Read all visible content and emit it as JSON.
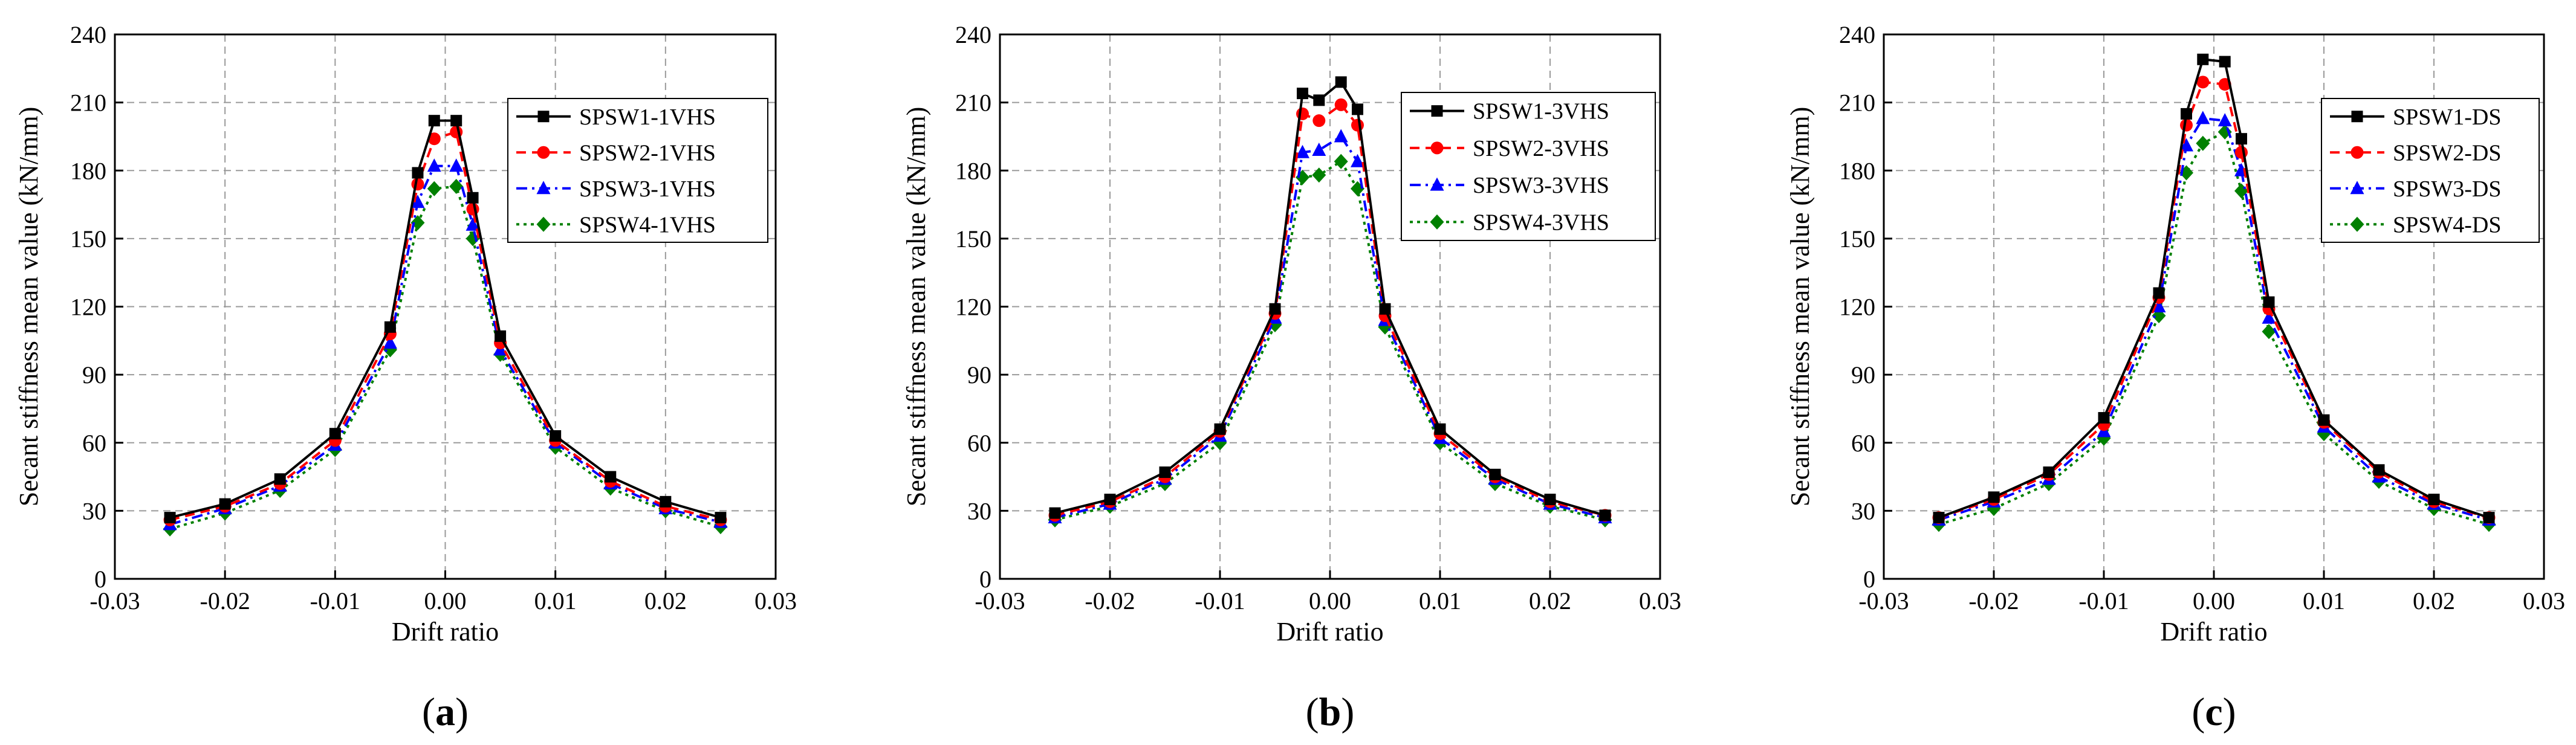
{
  "chart_data": [
    {
      "type": "line",
      "panel_label": [
        "(",
        "a",
        ")"
      ],
      "xlabel": "Drift ratio",
      "ylabel": "Secant stiffness mean value (kN/mm)",
      "xlim": [
        -0.03,
        0.03
      ],
      "ylim": [
        0,
        240
      ],
      "xticks": [
        -0.03,
        -0.02,
        -0.01,
        0.0,
        0.01,
        0.02,
        0.03
      ],
      "xtick_labels": [
        "-0.03",
        "-0.02",
        "-0.01",
        "0.00",
        "0.01",
        "0.02",
        "0.03"
      ],
      "yticks": [
        0,
        30,
        60,
        90,
        120,
        150,
        180,
        210,
        240
      ],
      "ytick_labels": [
        "0",
        "30",
        "60",
        "90",
        "120",
        "150",
        "180",
        "210",
        "240"
      ],
      "grid": true,
      "legend_position": "top-right",
      "x": [
        -0.025,
        -0.02,
        -0.015,
        -0.01,
        -0.005,
        -0.0025,
        -0.001,
        0.001,
        0.0025,
        0.005,
        0.01,
        0.015,
        0.02,
        0.025
      ],
      "series": [
        {
          "name": "SPSW1-1VHS",
          "color": "#000000",
          "marker": "square",
          "dash": "solid",
          "values": [
            27,
            33,
            44,
            64,
            111,
            179,
            202,
            202,
            168,
            107,
            63,
            45,
            34,
            27
          ]
        },
        {
          "name": "SPSW2-1VHS",
          "color": "#ff0000",
          "marker": "circle",
          "dash": "dash",
          "values": [
            26,
            32,
            42,
            61,
            108,
            174,
            194,
            197,
            163,
            104,
            61,
            43,
            32,
            26
          ]
        },
        {
          "name": "SPSW3-1VHS",
          "color": "#0000ff",
          "marker": "triangle",
          "dash": "dashdot",
          "values": [
            24,
            31,
            41,
            59,
            104,
            166,
            182,
            182,
            156,
            101,
            60,
            42,
            31,
            25
          ]
        },
        {
          "name": "SPSW4-1VHS",
          "color": "#008000",
          "marker": "diamond",
          "dash": "dot",
          "values": [
            22,
            29,
            39,
            57,
            101,
            157,
            172,
            173,
            150,
            99,
            58,
            40,
            30,
            23
          ]
        }
      ]
    },
    {
      "type": "line",
      "panel_label": [
        "(",
        "b",
        ")"
      ],
      "xlabel": "Drift ratio",
      "ylabel": "Secant stiffness mean value (kN/mm)",
      "xlim": [
        -0.03,
        0.03
      ],
      "ylim": [
        0,
        240
      ],
      "xticks": [
        -0.03,
        -0.02,
        -0.01,
        0.0,
        0.01,
        0.02,
        0.03
      ],
      "xtick_labels": [
        "-0.03",
        "-0.02",
        "-0.01",
        "0.00",
        "0.01",
        "0.02",
        "0.03"
      ],
      "yticks": [
        0,
        30,
        60,
        90,
        120,
        150,
        180,
        210,
        240
      ],
      "ytick_labels": [
        "0",
        "30",
        "60",
        "90",
        "120",
        "150",
        "180",
        "210",
        "240"
      ],
      "grid": true,
      "legend_position": "top-right",
      "x": [
        -0.025,
        -0.02,
        -0.015,
        -0.01,
        -0.005,
        -0.0025,
        -0.001,
        0.001,
        0.0025,
        0.005,
        0.01,
        0.015,
        0.02,
        0.025
      ],
      "series": [
        {
          "name": "SPSW1-3VHS",
          "color": "#000000",
          "marker": "square",
          "dash": "solid",
          "values": [
            29,
            35,
            47,
            66,
            119,
            214,
            211,
            219,
            207,
            119,
            66,
            46,
            35,
            28
          ]
        },
        {
          "name": "SPSW2-3VHS",
          "color": "#ff0000",
          "marker": "circle",
          "dash": "dash",
          "values": [
            28,
            34,
            45,
            65,
            117,
            205,
            202,
            209,
            200,
            116,
            64,
            45,
            34,
            28
          ]
        },
        {
          "name": "SPSW3-3VHS",
          "color": "#0000ff",
          "marker": "triangle",
          "dash": "dashdot",
          "values": [
            27,
            33,
            44,
            63,
            115,
            188,
            189,
            195,
            184,
            114,
            62,
            44,
            33,
            27
          ]
        },
        {
          "name": "SPSW4-3VHS",
          "color": "#008000",
          "marker": "diamond",
          "dash": "dot",
          "values": [
            26,
            32,
            42,
            60,
            112,
            177,
            178,
            184,
            172,
            111,
            60,
            42,
            32,
            26
          ]
        }
      ]
    },
    {
      "type": "line",
      "panel_label": [
        "(",
        "c",
        ")"
      ],
      "xlabel": "Drift ratio",
      "ylabel": "Secant stiffness mean value (kN/mm)",
      "xlim": [
        -0.03,
        0.03
      ],
      "ylim": [
        0,
        240
      ],
      "xticks": [
        -0.03,
        -0.02,
        -0.01,
        0.0,
        0.01,
        0.02,
        0.03
      ],
      "xtick_labels": [
        "-0.03",
        "-0.02",
        "-0.01",
        "0.00",
        "0.01",
        "0.02",
        "0.03"
      ],
      "yticks": [
        0,
        30,
        60,
        90,
        120,
        150,
        180,
        210,
        240
      ],
      "ytick_labels": [
        "0",
        "30",
        "60",
        "90",
        "120",
        "150",
        "180",
        "210",
        "240"
      ],
      "grid": true,
      "legend_position": "top-right",
      "x": [
        -0.025,
        -0.02,
        -0.015,
        -0.01,
        -0.005,
        -0.0025,
        -0.001,
        0.001,
        0.0025,
        0.005,
        0.01,
        0.015,
        0.02,
        0.025
      ],
      "series": [
        {
          "name": "SPSW1-DS",
          "color": "#000000",
          "marker": "square",
          "dash": "solid",
          "values": [
            27,
            36,
            47,
            71,
            126,
            205,
            229,
            228,
            194,
            122,
            70,
            48,
            35,
            27
          ]
        },
        {
          "name": "SPSW2-DS",
          "color": "#ff0000",
          "marker": "circle",
          "dash": "dash",
          "values": [
            27,
            35,
            46,
            68,
            124,
            200,
            219,
            218,
            188,
            119,
            69,
            47,
            34,
            27
          ]
        },
        {
          "name": "SPSW3-DS",
          "color": "#0000ff",
          "marker": "triangle",
          "dash": "dashdot",
          "values": [
            26,
            34,
            44,
            65,
            120,
            191,
            203,
            202,
            180,
            115,
            67,
            45,
            33,
            26
          ]
        },
        {
          "name": "SPSW4-DS",
          "color": "#008000",
          "marker": "diamond",
          "dash": "dot",
          "values": [
            24,
            31,
            42,
            62,
            116,
            179,
            192,
            197,
            171,
            109,
            64,
            43,
            31,
            24
          ]
        }
      ]
    }
  ]
}
